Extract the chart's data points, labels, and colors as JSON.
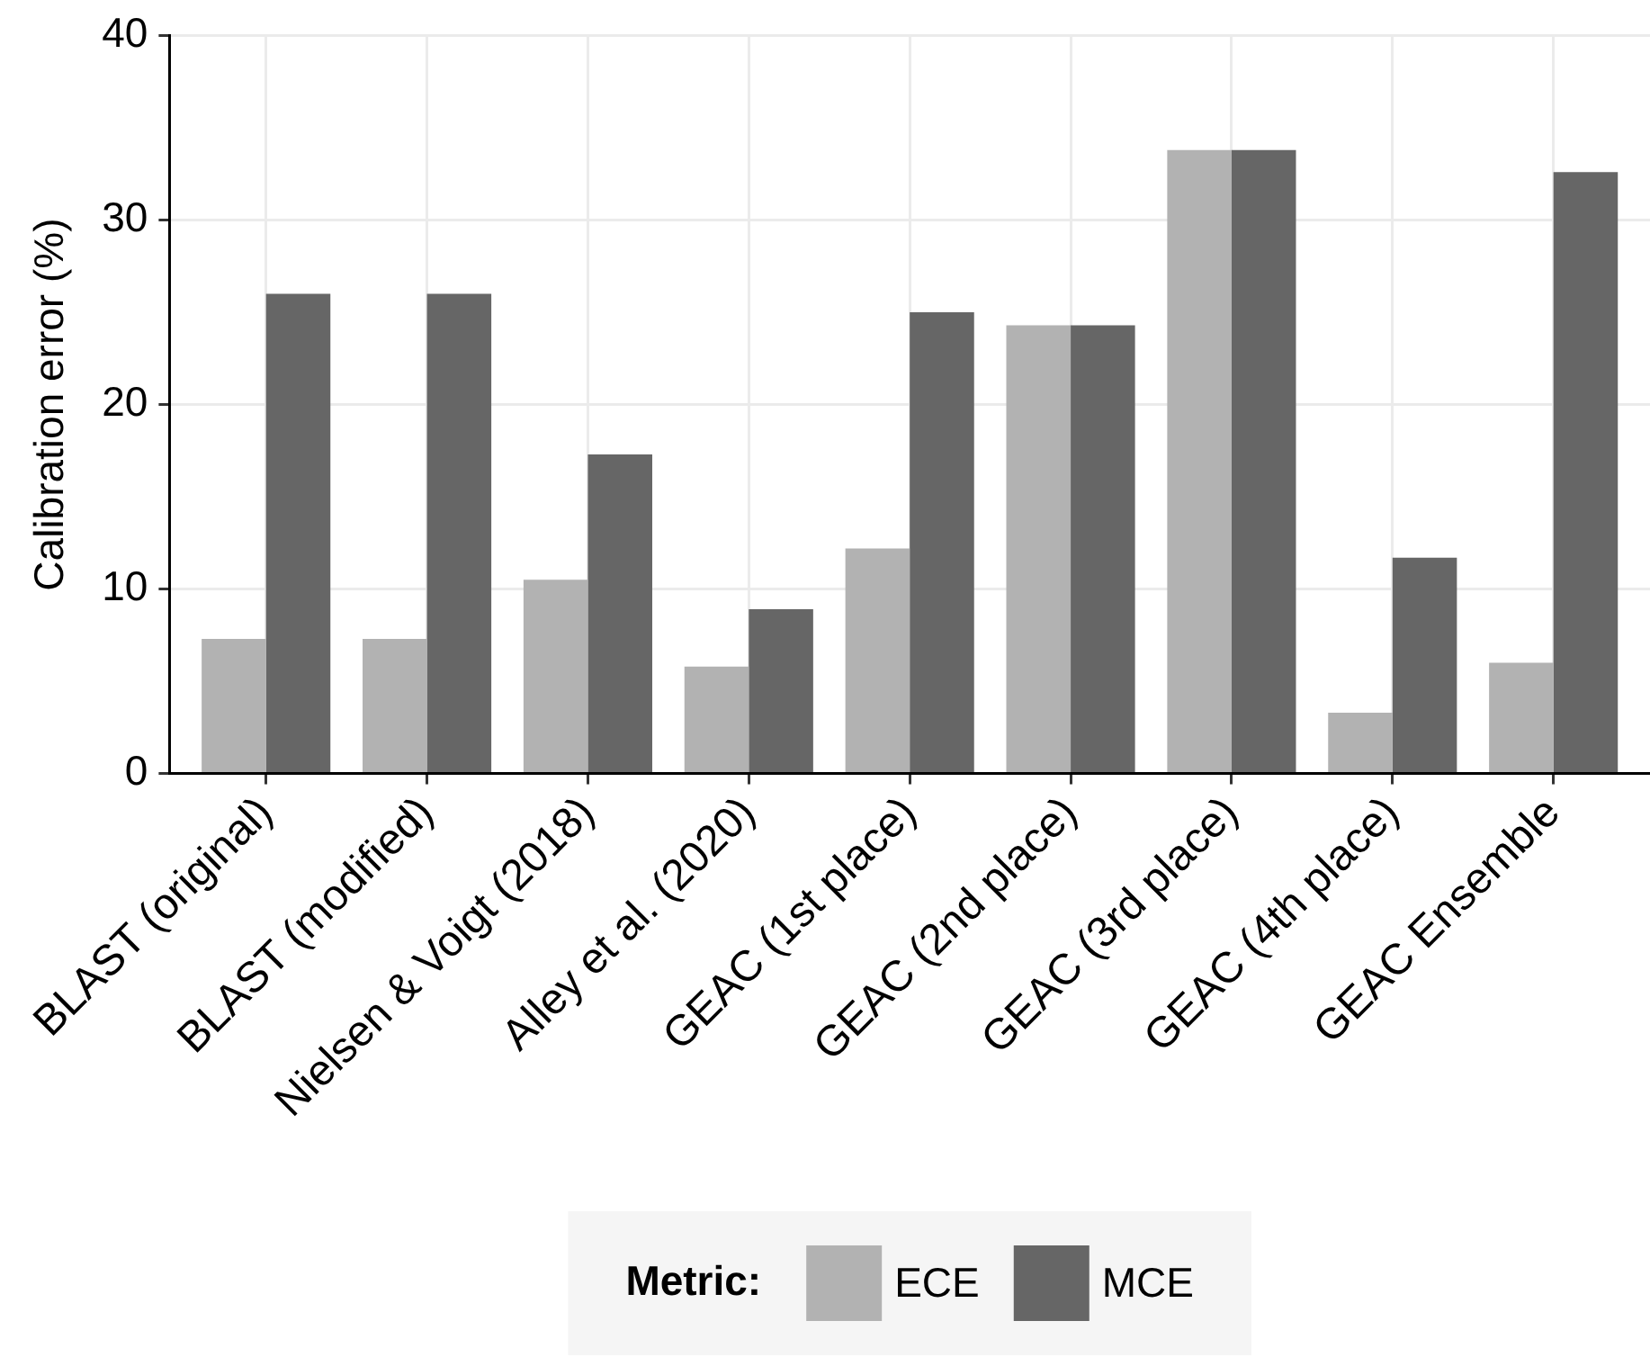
{
  "chart_data": {
    "type": "bar",
    "categories": [
      "BLAST (original)",
      "BLAST (modified)",
      "Nielsen & Voigt (2018)",
      "Alley et al. (2020)",
      "GEAC (1st place)",
      "GEAC (2nd place)",
      "GEAC (3rd place)",
      "GEAC (4th place)",
      "GEAC Ensemble"
    ],
    "series": [
      {
        "name": "ECE",
        "color": "#b2b2b2",
        "values": [
          7.3,
          7.3,
          10.5,
          5.8,
          12.2,
          24.3,
          33.8,
          3.3,
          6.0
        ]
      },
      {
        "name": "MCE",
        "color": "#666666",
        "values": [
          26.0,
          26.0,
          17.3,
          8.9,
          25.0,
          24.3,
          33.8,
          11.7,
          32.6
        ]
      }
    ],
    "ylabel": "Calibration error (%)",
    "ylim": [
      0,
      40
    ],
    "yticks": [
      0,
      10,
      20,
      30,
      40
    ],
    "grid": true,
    "legend": "bottom",
    "legend_title": "Metric:"
  }
}
